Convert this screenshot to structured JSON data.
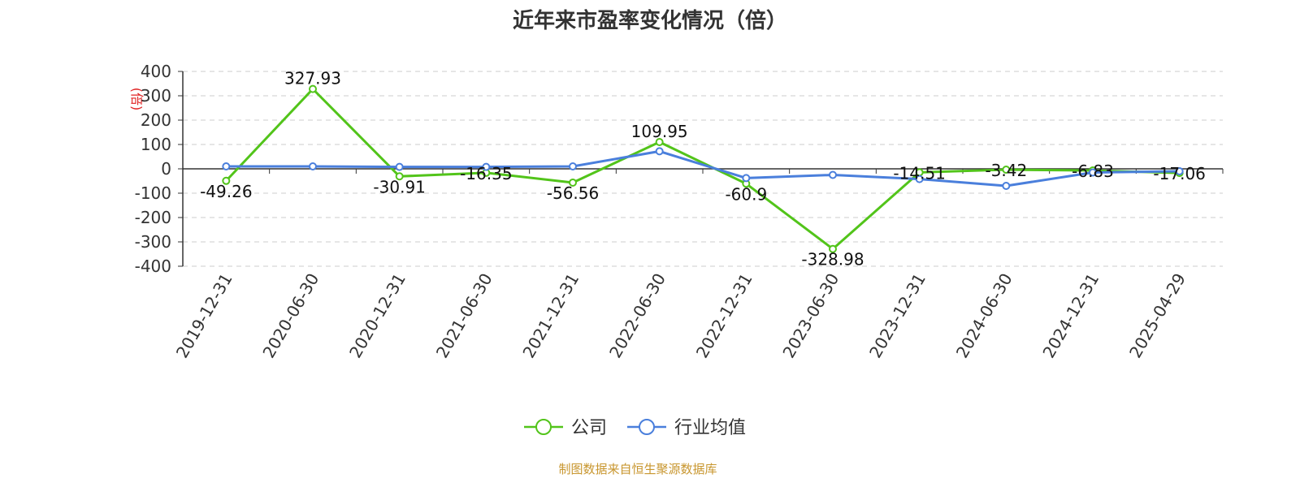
{
  "chart_data": {
    "type": "line",
    "title": "近年来市盈率变化情况（倍）",
    "ylabel": "(倍)",
    "xlabel": "",
    "ylim": [
      -400,
      400
    ],
    "yticks": [
      400,
      300,
      200,
      100,
      0,
      -100,
      -200,
      -300,
      -400
    ],
    "grid": true,
    "legend_position": "bottom",
    "categories": [
      "2019-12-31",
      "2020-06-30",
      "2020-12-31",
      "2021-06-30",
      "2021-12-31",
      "2022-06-30",
      "2022-12-31",
      "2023-06-30",
      "2023-12-31",
      "2024-06-30",
      "2024-12-31",
      "2025-04-29"
    ],
    "series": [
      {
        "name": "公司",
        "color": "#52c41a",
        "values": [
          -49.26,
          327.93,
          -30.91,
          -16.35,
          -56.56,
          109.95,
          -60.9,
          -328.98,
          -14.51,
          -3.42,
          -6.83,
          -17.06
        ],
        "labels": [
          "-49.26",
          "327.93",
          "-30.91",
          "-16.35",
          "-56.56",
          "109.95",
          "-60.9",
          "-328.98",
          "-14.51",
          "-3.42",
          "-6.83",
          "-17.06"
        ]
      },
      {
        "name": "行业均值",
        "color": "#4a7fdc",
        "values": [
          10,
          10,
          8,
          8,
          10,
          72,
          -38,
          -25,
          -42,
          -70,
          -15,
          -10
        ]
      }
    ]
  },
  "source_note": "制图数据来自恒生聚源数据库"
}
